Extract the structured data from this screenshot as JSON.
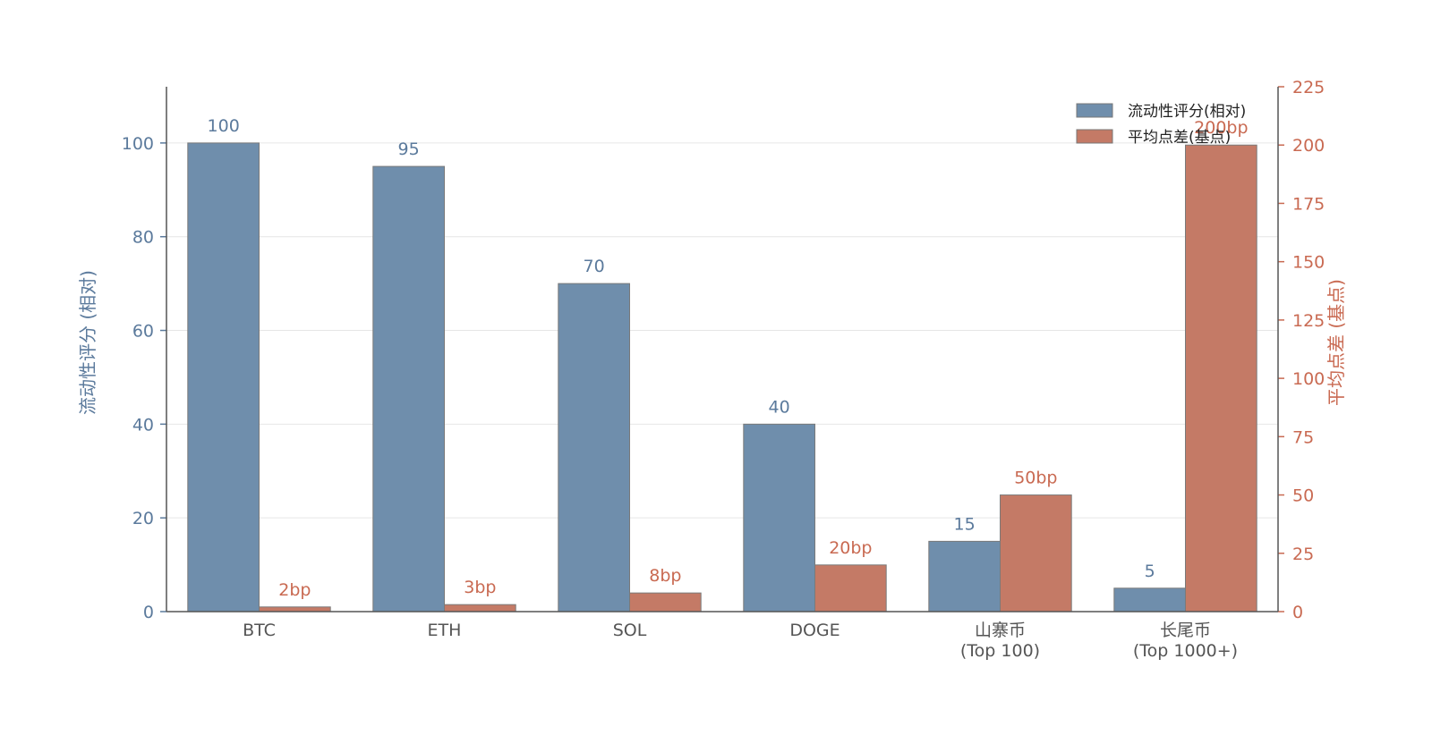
{
  "chart_data": {
    "type": "bar",
    "categories": [
      [
        "BTC"
      ],
      [
        "ETH"
      ],
      [
        "SOL"
      ],
      [
        "DOGE"
      ],
      [
        "山寨币",
        "(Top 100)"
      ],
      [
        "长尾币",
        "(Top 1000+)"
      ]
    ],
    "series": [
      {
        "name": "流动性评分(相对)",
        "axis": "left",
        "values": [
          100,
          95,
          70,
          40,
          15,
          5
        ],
        "labels": [
          "100",
          "95",
          "70",
          "40",
          "15",
          "5"
        ],
        "color": "#6f8eac"
      },
      {
        "name": "平均点差(基点)",
        "axis": "right",
        "values": [
          2,
          3,
          8,
          20,
          50,
          200
        ],
        "labels": [
          "2bp",
          "3bp",
          "8bp",
          "20bp",
          "50bp",
          "200bp"
        ],
        "color": "#c47a66"
      }
    ],
    "ylabel_left": "流动性评分 (相对)",
    "ylabel_right": "平均点差 (基点)",
    "ylim_left": [
      0,
      112
    ],
    "ylim_right": [
      0,
      225
    ],
    "yticks_left": [
      0,
      20,
      40,
      60,
      80,
      100
    ],
    "yticks_right": [
      0,
      25,
      50,
      75,
      100,
      125,
      150,
      175,
      200,
      225
    ],
    "grid": true,
    "legend_position": "top-right",
    "axis_colors": {
      "left": "#5b7a9c",
      "right": "#c96a52"
    }
  }
}
